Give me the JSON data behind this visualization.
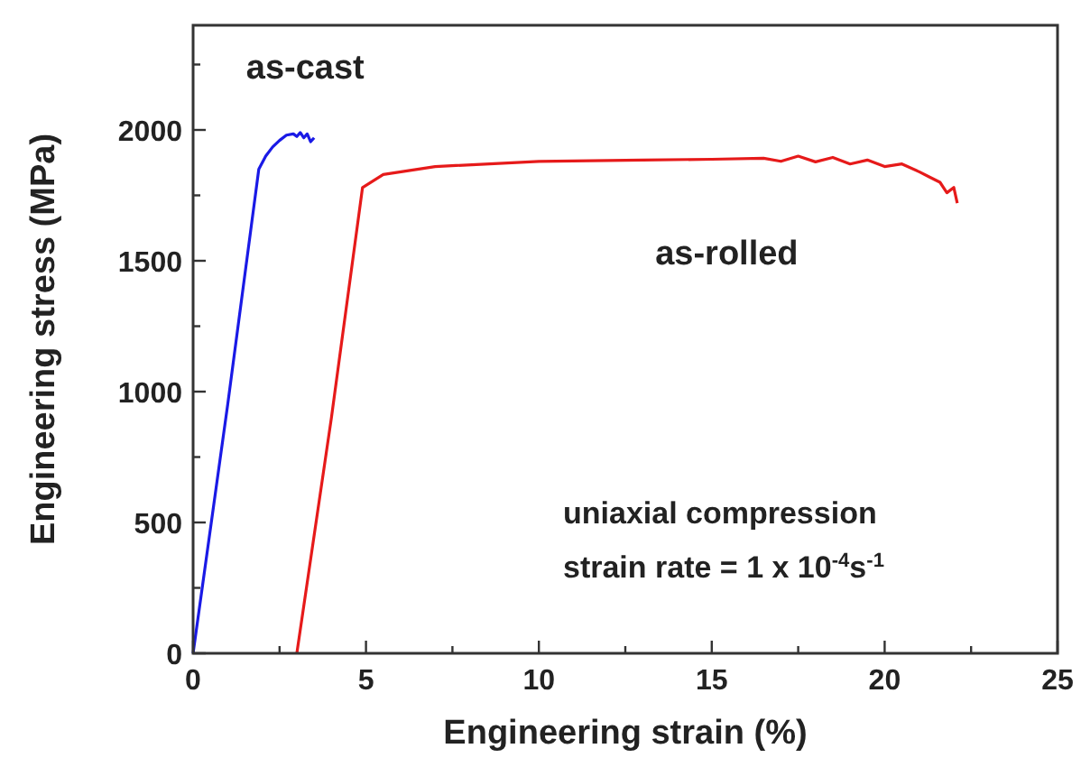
{
  "chart_data": {
    "type": "line",
    "xlabel": "Engineering strain (%)",
    "ylabel": "Engineering stress (MPa)",
    "xlim": [
      0,
      25
    ],
    "ylim": [
      0,
      2400
    ],
    "xticks": [
      0,
      {
        "value": 2.5,
        "label": null
      },
      5,
      {
        "value": 7.5,
        "label": null
      },
      10,
      {
        "value": 12.5,
        "label": null
      },
      15,
      {
        "value": 17.5,
        "label": null
      },
      20,
      {
        "value": 22.5,
        "label": null
      },
      25
    ],
    "yticks": [
      0,
      {
        "value": 250,
        "label": null
      },
      500,
      {
        "value": 750,
        "label": null
      },
      1000,
      {
        "value": 1250,
        "label": null
      },
      1500,
      {
        "value": 1750,
        "label": null
      },
      2000,
      {
        "value": 2250,
        "label": null
      }
    ],
    "series": [
      {
        "name": "as-cast",
        "color": "#1a1ae6",
        "x": [
          0,
          1.0,
          1.9,
          2.1,
          2.3,
          2.5,
          2.7,
          2.9,
          3.0,
          3.1,
          3.2,
          3.3,
          3.4,
          3.5
        ],
        "values": [
          0,
          950,
          1850,
          1900,
          1935,
          1960,
          1980,
          1985,
          1975,
          1990,
          1970,
          1985,
          1955,
          1970
        ]
      },
      {
        "name": "as-rolled",
        "color": "#e61a1a",
        "x": [
          3.0,
          4.0,
          4.9,
          5.5,
          7,
          10,
          13,
          15,
          16.5,
          17,
          17.5,
          18,
          18.5,
          19,
          19.5,
          20,
          20.5,
          21,
          21.3,
          21.6,
          21.8,
          22.0,
          22.1
        ],
        "values": [
          0,
          900,
          1780,
          1830,
          1860,
          1880,
          1885,
          1888,
          1892,
          1880,
          1900,
          1878,
          1895,
          1870,
          1885,
          1860,
          1870,
          1840,
          1820,
          1800,
          1760,
          1780,
          1720
        ]
      }
    ],
    "annotations": [
      "uniaxial compression",
      "strain rate = 1 x 10$^{-4}$s$^{-1}$"
    ],
    "grid": false,
    "marker": "none",
    "line_style": "solid"
  }
}
